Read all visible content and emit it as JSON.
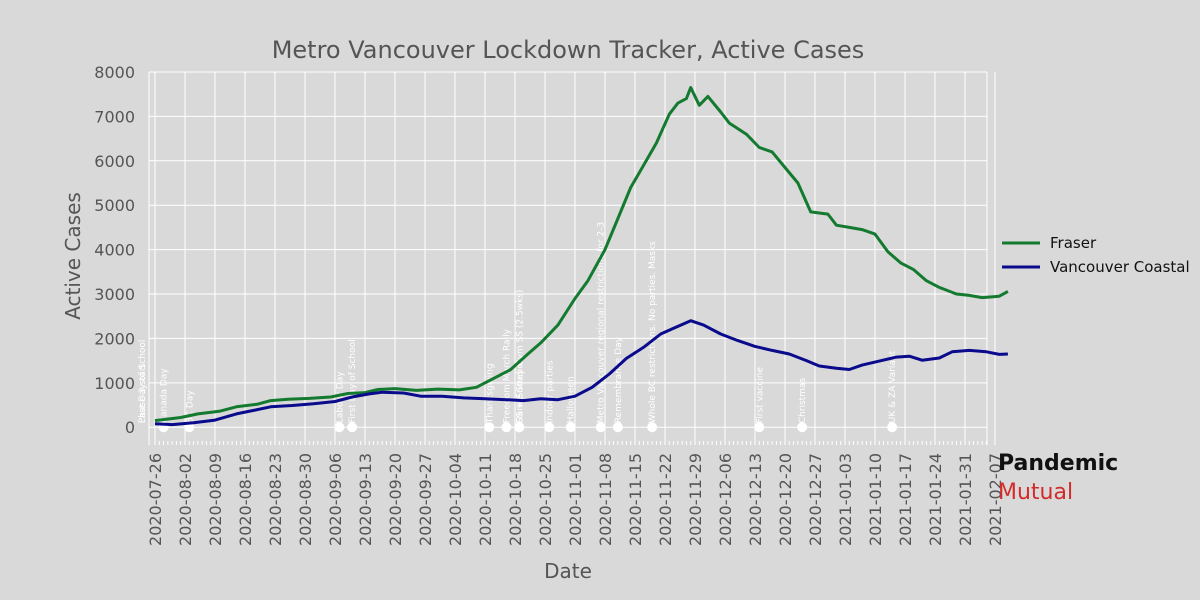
{
  "chart_data": {
    "type": "line",
    "title": "Metro Vancouver Lockdown Tracker, Active Cases",
    "xlabel": "Date",
    "ylabel": "Active Cases",
    "ylim": [
      -400,
      8000
    ],
    "y_ticks": [
      0,
      1000,
      2000,
      3000,
      4000,
      5000,
      6000,
      7000,
      8000
    ],
    "x_range": [
      "2020-07-26",
      "2021-02-10"
    ],
    "x_ticks": [
      "2020-07-26",
      "2020-08-02",
      "2020-08-09",
      "2020-08-16",
      "2020-08-23",
      "2020-08-30",
      "2020-09-06",
      "2020-09-13",
      "2020-09-20",
      "2020-09-27",
      "2020-10-04",
      "2020-10-11",
      "2020-10-18",
      "2020-10-25",
      "2020-11-01",
      "2020-11-08",
      "2020-11-15",
      "2020-11-22",
      "2020-11-29",
      "2020-12-06",
      "2020-12-13",
      "2020-12-20",
      "2020-12-27",
      "2021-01-03",
      "2021-01-10",
      "2021-01-17",
      "2021-01-24",
      "2021-01-31",
      "2021-02-07"
    ],
    "grid": true,
    "legend_position": "right",
    "series": [
      {
        "name": "Fraser",
        "color": "#137a2f",
        "points": [
          [
            "2020-07-26",
            150
          ],
          [
            "2020-08-01",
            220
          ],
          [
            "2020-08-05",
            300
          ],
          [
            "2020-08-10",
            360
          ],
          [
            "2020-08-14",
            460
          ],
          [
            "2020-08-19",
            520
          ],
          [
            "2020-08-22",
            600
          ],
          [
            "2020-08-26",
            630
          ],
          [
            "2020-08-31",
            650
          ],
          [
            "2020-09-05",
            680
          ],
          [
            "2020-09-09",
            760
          ],
          [
            "2020-09-13",
            780
          ],
          [
            "2020-09-16",
            850
          ],
          [
            "2020-09-20",
            870
          ],
          [
            "2020-09-25",
            830
          ],
          [
            "2020-09-30",
            860
          ],
          [
            "2020-10-05",
            840
          ],
          [
            "2020-10-09",
            900
          ],
          [
            "2020-10-13",
            1100
          ],
          [
            "2020-10-17",
            1300
          ],
          [
            "2020-10-21",
            1650
          ],
          [
            "2020-10-24",
            1900
          ],
          [
            "2020-10-28",
            2300
          ],
          [
            "2020-11-01",
            2900
          ],
          [
            "2020-11-04",
            3300
          ],
          [
            "2020-11-08",
            4000
          ],
          [
            "2020-11-11",
            4700
          ],
          [
            "2020-11-14",
            5400
          ],
          [
            "2020-11-17",
            5900
          ],
          [
            "2020-11-20",
            6400
          ],
          [
            "2020-11-23",
            7050
          ],
          [
            "2020-11-25",
            7300
          ],
          [
            "2020-11-27",
            7400
          ],
          [
            "2020-11-28",
            7650
          ],
          [
            "2020-11-30",
            7250
          ],
          [
            "2020-12-02",
            7450
          ],
          [
            "2020-12-05",
            7100
          ],
          [
            "2020-12-07",
            6850
          ],
          [
            "2020-12-11",
            6600
          ],
          [
            "2020-12-14",
            6300
          ],
          [
            "2020-12-17",
            6200
          ],
          [
            "2020-12-20",
            5850
          ],
          [
            "2020-12-23",
            5500
          ],
          [
            "2020-12-26",
            4850
          ],
          [
            "2020-12-30",
            4800
          ],
          [
            "2021-01-01",
            4550
          ],
          [
            "2021-01-04",
            4500
          ],
          [
            "2021-01-07",
            4450
          ],
          [
            "2021-01-10",
            4350
          ],
          [
            "2021-01-13",
            3950
          ],
          [
            "2021-01-16",
            3700
          ],
          [
            "2021-01-19",
            3550
          ],
          [
            "2021-01-22",
            3300
          ],
          [
            "2021-01-25",
            3150
          ],
          [
            "2021-01-29",
            3000
          ],
          [
            "2021-02-01",
            2970
          ],
          [
            "2021-02-04",
            2920
          ],
          [
            "2021-02-08",
            2950
          ],
          [
            "2021-02-10",
            3060
          ]
        ]
      },
      {
        "name": "Vancouver Coastal",
        "color": "#0a0a8c",
        "points": [
          [
            "2020-07-26",
            80
          ],
          [
            "2020-07-30",
            60
          ],
          [
            "2020-08-04",
            100
          ],
          [
            "2020-08-09",
            160
          ],
          [
            "2020-08-14",
            300
          ],
          [
            "2020-08-18",
            380
          ],
          [
            "2020-08-22",
            460
          ],
          [
            "2020-08-27",
            490
          ],
          [
            "2020-09-01",
            530
          ],
          [
            "2020-09-06",
            580
          ],
          [
            "2020-09-10",
            680
          ],
          [
            "2020-09-14",
            750
          ],
          [
            "2020-09-17",
            790
          ],
          [
            "2020-09-22",
            770
          ],
          [
            "2020-09-26",
            700
          ],
          [
            "2020-10-01",
            700
          ],
          [
            "2020-10-06",
            660
          ],
          [
            "2020-10-11",
            640
          ],
          [
            "2020-10-16",
            620
          ],
          [
            "2020-10-20",
            600
          ],
          [
            "2020-10-24",
            640
          ],
          [
            "2020-10-28",
            620
          ],
          [
            "2020-11-01",
            700
          ],
          [
            "2020-11-05",
            900
          ],
          [
            "2020-11-09",
            1200
          ],
          [
            "2020-11-13",
            1550
          ],
          [
            "2020-11-17",
            1800
          ],
          [
            "2020-11-21",
            2100
          ],
          [
            "2020-11-24",
            2230
          ],
          [
            "2020-11-28",
            2400
          ],
          [
            "2020-12-01",
            2300
          ],
          [
            "2020-12-05",
            2100
          ],
          [
            "2020-12-09",
            1950
          ],
          [
            "2020-12-13",
            1820
          ],
          [
            "2020-12-17",
            1730
          ],
          [
            "2020-12-21",
            1650
          ],
          [
            "2020-12-25",
            1500
          ],
          [
            "2020-12-28",
            1380
          ],
          [
            "2021-01-01",
            1330
          ],
          [
            "2021-01-04",
            1300
          ],
          [
            "2021-01-07",
            1400
          ],
          [
            "2021-01-11",
            1490
          ],
          [
            "2021-01-15",
            1580
          ],
          [
            "2021-01-18",
            1600
          ],
          [
            "2021-01-21",
            1510
          ],
          [
            "2021-01-25",
            1560
          ],
          [
            "2021-01-28",
            1700
          ],
          [
            "2021-02-01",
            1730
          ],
          [
            "2021-02-05",
            1700
          ],
          [
            "2021-02-08",
            1640
          ],
          [
            "2021-02-10",
            1650
          ]
        ]
      }
    ],
    "events": [
      {
        "date": "2020-07-23",
        "label": "Phase 3 start"
      },
      {
        "date": "2020-07-23",
        "label": "Last Day of School"
      },
      {
        "date": "2020-07-28",
        "label": "Canada Day"
      },
      {
        "date": "2020-08-03",
        "label": "BC Day"
      },
      {
        "date": "2020-09-07",
        "label": "Labour Day"
      },
      {
        "date": "2020-09-10",
        "label": "First Day of School"
      },
      {
        "date": "2020-10-12",
        "label": "Thanksgiving"
      },
      {
        "date": "2020-10-16",
        "label": "Freedom March Rally"
      },
      {
        "date": "2020-10-19",
        "label": "Dance Studio"
      },
      {
        "date": "2020-10-19",
        "label": "SS + Surrey Gym SS (2.5wks)"
      },
      {
        "date": "2020-10-26",
        "label": "Indoor parties"
      },
      {
        "date": "2020-10-31",
        "label": "Halloween"
      },
      {
        "date": "2020-11-07",
        "label": "Metro Vancouver regional restrictions for 2-3"
      },
      {
        "date": "2020-11-11",
        "label": "Remembrance Day"
      },
      {
        "date": "2020-11-19",
        "label": "Whole BC restrictions. No parties. Masks"
      },
      {
        "date": "2020-12-14",
        "label": "First vaccine"
      },
      {
        "date": "2020-12-24",
        "label": "Christmas"
      },
      {
        "date": "2021-01-14",
        "label": "UK & ZA Variant"
      }
    ]
  },
  "brand": {
    "line1": "Pandemic",
    "line2": "Mutual"
  },
  "colors": {
    "background": "#d9d9d9",
    "grid": "#ffffff",
    "text": "#555555",
    "brand_red": "#d42a2a"
  }
}
